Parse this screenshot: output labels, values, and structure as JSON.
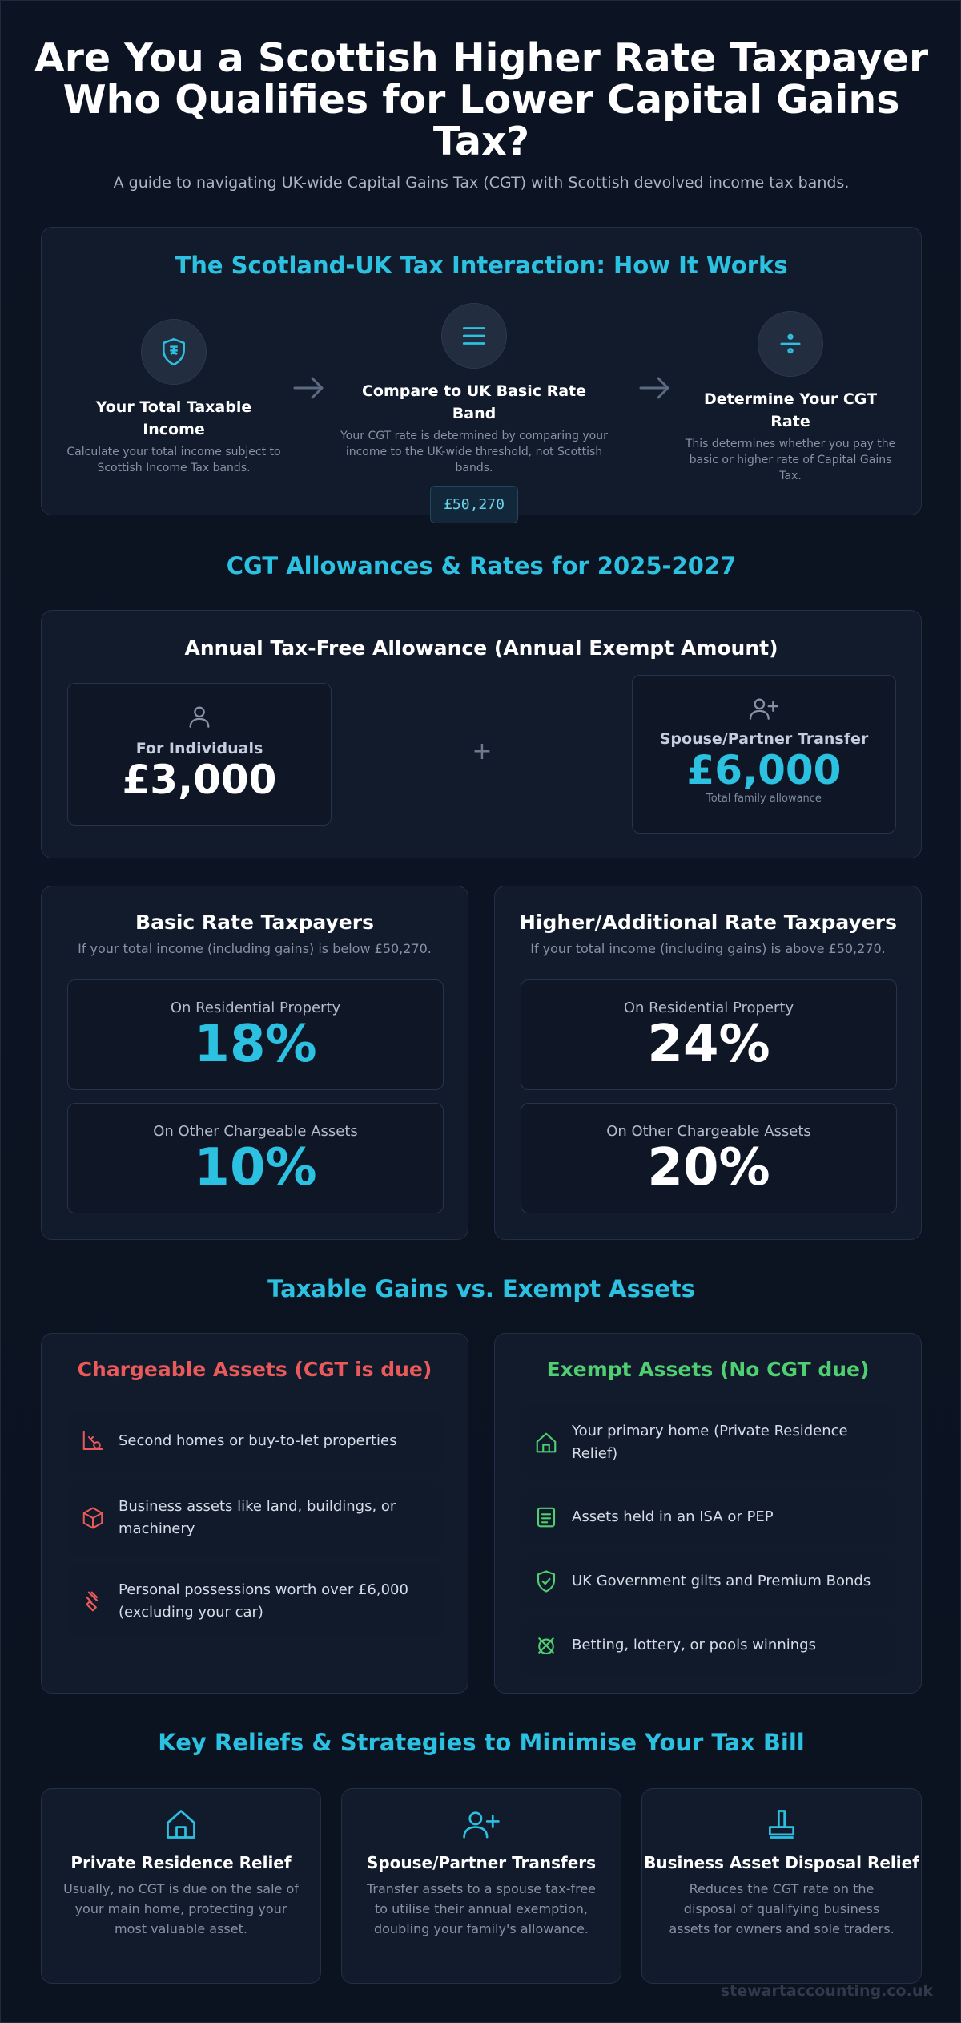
{
  "hero": {
    "title": "Are You a Scottish Higher Rate Taxpayer Who Qualifies for Lower Capital Gains Tax?",
    "subtitle": "A guide to navigating UK-wide Capital Gains Tax (CGT) with Scottish devolved income tax bands."
  },
  "interaction": {
    "title": "The Scotland-UK Tax Interaction: How It Works",
    "steps": [
      {
        "title": "Your Total Taxable Income",
        "desc": "Calculate your total income subject to Scottish Income Tax bands.",
        "icon": "shield-icon"
      },
      {
        "title": "Compare to UK Basic Rate Band",
        "desc": "Your CGT rate is determined by comparing your income to the UK-wide threshold, not Scottish bands.",
        "badge": "£50,270",
        "icon": "list-icon"
      },
      {
        "title": "Determine Your CGT Rate",
        "desc": "This determines whether you pay the basic or higher rate of Capital Gains Tax.",
        "icon": "divide-icon"
      }
    ]
  },
  "allowances": {
    "section_title": "CGT Allowances & Rates for 2025-2027",
    "title": "Annual Tax-Free Allowance (Annual Exempt Amount)",
    "individual_label": "For Individuals",
    "individual_value": "£3,000",
    "plus": "+",
    "spouse_label": "Spouse/Partner Transfer",
    "spouse_value": "£6,000",
    "spouse_note": "Total family allowance"
  },
  "rates": {
    "basic": {
      "title": "Basic Rate Taxpayers",
      "sub": "If your total income (including gains) is below £50,270.",
      "residential_label": "On Residential Property",
      "residential_value": "18%",
      "other_label": "On Other Chargeable Assets",
      "other_value": "10%"
    },
    "higher": {
      "title": "Higher/Additional Rate Taxpayers",
      "sub": "If your total income (including gains) is above £50,270.",
      "residential_label": "On Residential Property",
      "residential_value": "24%",
      "other_label": "On Other Chargeable Assets",
      "other_value": "20%"
    }
  },
  "assets": {
    "section_title": "Taxable Gains vs. Exempt Assets",
    "chargeable_title": "Chargeable Assets (CGT is due)",
    "chargeable": [
      {
        "text": "Second homes or buy-to-let properties",
        "icon": "key-icon"
      },
      {
        "text": "Business assets like land, buildings, or machinery",
        "icon": "box-icon"
      },
      {
        "text": "Personal possessions worth over £6,000 (excluding your car)",
        "icon": "gem-icon"
      }
    ],
    "exempt_title": "Exempt Assets (No CGT due)",
    "exempt": [
      {
        "text": "Your primary home (Private Residence Relief)",
        "icon": "home-icon"
      },
      {
        "text": "Assets held in an ISA or PEP",
        "icon": "document-icon"
      },
      {
        "text": "UK Government gilts and Premium Bonds",
        "icon": "shield-check-icon"
      },
      {
        "text": "Betting, lottery, or pools winnings",
        "icon": "ticket-icon"
      }
    ]
  },
  "reliefs": {
    "section_title": "Key Reliefs & Strategies to Minimise Your Tax Bill",
    "items": [
      {
        "title": "Private Residence Relief",
        "desc": "Usually, no CGT is due on the sale of your main home, protecting your most valuable asset.",
        "icon": "home-icon"
      },
      {
        "title": "Spouse/Partner Transfers",
        "desc": "Transfer assets to a spouse tax-free to utilise their annual exemption, doubling your family's allowance.",
        "icon": "user-plus-icon"
      },
      {
        "title": "Business Asset Disposal Relief",
        "desc": "Reduces the CGT rate on the disposal of qualifying business assets for owners and sole traders.",
        "icon": "stamp-icon"
      }
    ]
  },
  "footer": {
    "brand": "stewartaccounting.co.uk"
  },
  "colors": {
    "accent": "#2cc1e1",
    "chargeable": "#ea5a5a",
    "exempt": "#4fcf72",
    "background": "#0b1220"
  }
}
